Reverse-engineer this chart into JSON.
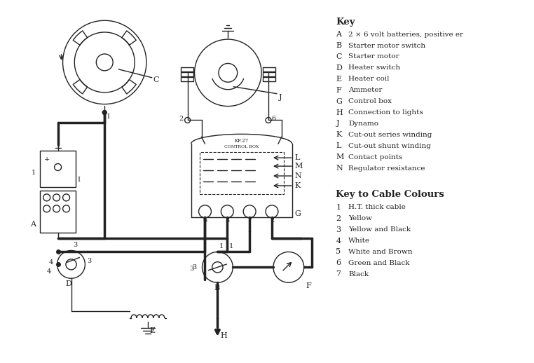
{
  "background_color": "#ffffff",
  "line_color": "#222222",
  "key_title": "Key",
  "key_entries": [
    [
      "A",
      "2 × 6 volt batteries, positive er"
    ],
    [
      "B",
      "Starter motor switch"
    ],
    [
      "C",
      "Starter motor"
    ],
    [
      "D",
      "Heater switch"
    ],
    [
      "E",
      "Heater coil"
    ],
    [
      "F",
      "Ammeter"
    ],
    [
      "G",
      "Control box"
    ],
    [
      "H",
      "Connection to lights"
    ],
    [
      "J",
      "Dynamo"
    ],
    [
      "K",
      "Cut-out series winding"
    ],
    [
      "L",
      "Cut-out shunt winding"
    ],
    [
      "M",
      "Contact points"
    ],
    [
      "N",
      "Regulator resistance"
    ]
  ],
  "cable_title": "Key to Cable Colours",
  "cable_entries": [
    [
      "1",
      "H.T. thick cable"
    ],
    [
      "2",
      "Yellow"
    ],
    [
      "3",
      "Yellow and Black"
    ],
    [
      "4",
      "White"
    ],
    [
      "5",
      "White and Brown"
    ],
    [
      "6",
      "Green and Black"
    ],
    [
      "7",
      "Black"
    ]
  ],
  "fig_width": 7.62,
  "fig_height": 5.18,
  "dpi": 100
}
